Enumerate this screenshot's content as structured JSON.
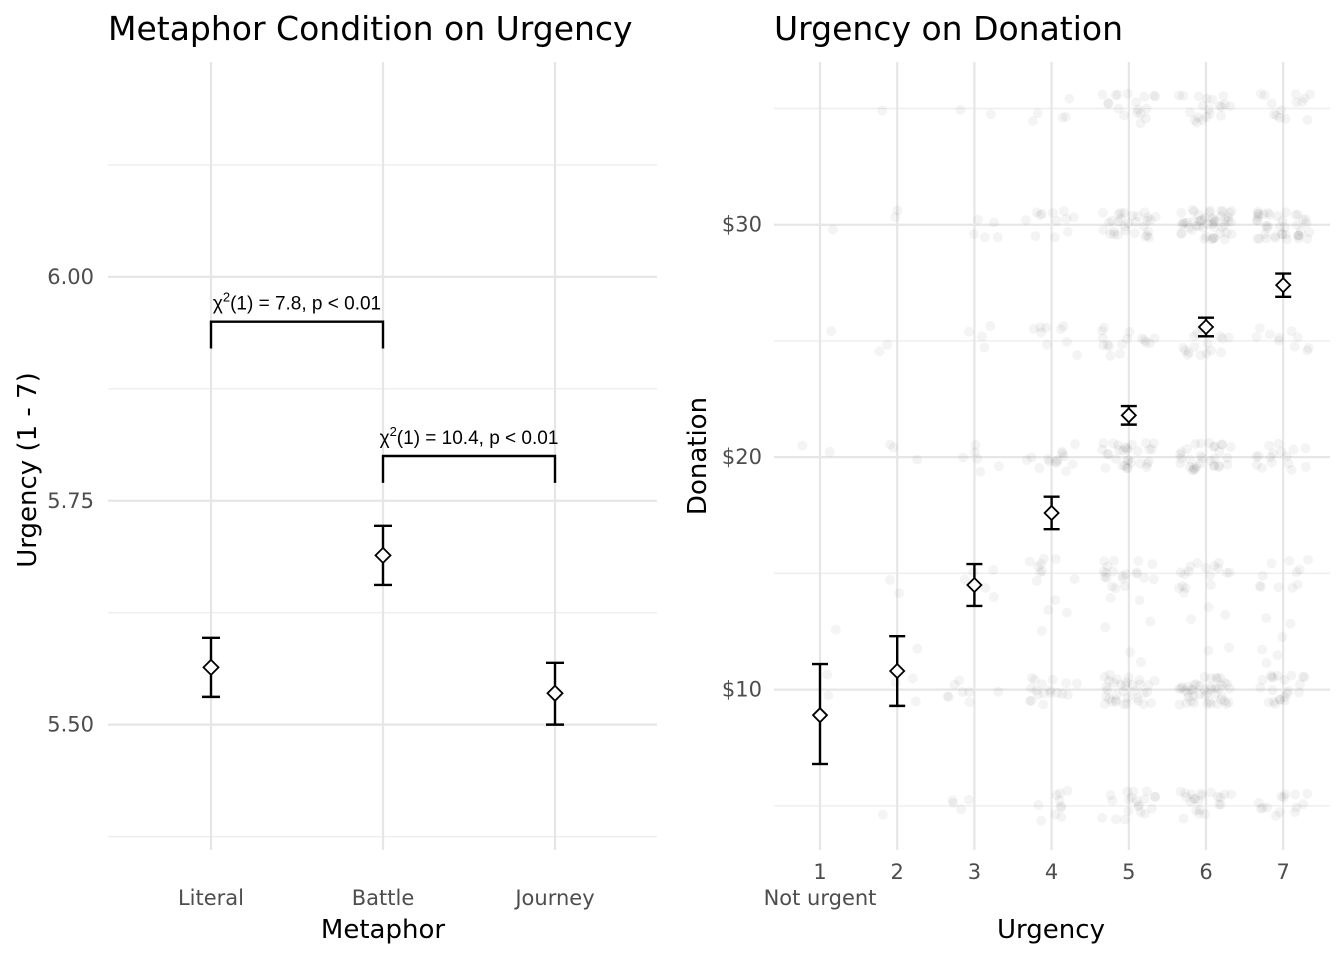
{
  "chart_data": [
    {
      "type": "scatter",
      "title": "Metaphor Condition on Urgency",
      "xlabel": "Metaphor",
      "ylabel": "Urgency (1 - 7)",
      "categories": [
        "Literal",
        "Battle",
        "Journey"
      ],
      "ylim": [
        5.36,
        6.24
      ],
      "yticks": [
        5.5,
        5.75,
        6.0
      ],
      "ytick_labels": [
        "5.50",
        "5.75",
        "6.00"
      ],
      "grid": true,
      "points": [
        {
          "category": "Literal",
          "mean": 5.564,
          "lower": 5.531,
          "upper": 5.597
        },
        {
          "category": "Battle",
          "mean": 5.689,
          "lower": 5.656,
          "upper": 5.722
        },
        {
          "category": "Journey",
          "mean": 5.535,
          "lower": 5.5,
          "upper": 5.569
        }
      ],
      "annotations": [
        {
          "from": "Literal",
          "to": "Battle",
          "y_top": 5.95,
          "y_bottom": 5.92,
          "prefix": "χ",
          "sup": "2",
          "text": "(1) = 7.8,   p < 0.01"
        },
        {
          "from": "Battle",
          "to": "Journey",
          "y_top": 5.8,
          "y_bottom": 5.77,
          "prefix": "χ",
          "sup": "2",
          "text": "(1) = 10.4,   p < 0.01"
        }
      ]
    },
    {
      "type": "scatter",
      "title": "Urgency on Donation",
      "xlabel": "Urgency",
      "ylabel": "Donation",
      "x": [
        1,
        2,
        3,
        4,
        5,
        6,
        7
      ],
      "xtick_labels": [
        "1",
        "2",
        "3",
        "4",
        "5",
        "6",
        "7"
      ],
      "x_extra_label": "Not urgent",
      "xlim": [
        0.3,
        7.6
      ],
      "ylim": [
        3.1,
        37.0
      ],
      "yticks": [
        10,
        20,
        30
      ],
      "ytick_labels": [
        "$10",
        "$20",
        "$30"
      ],
      "grid": true,
      "points": [
        {
          "x": 1,
          "mean": 8.9,
          "lower": 6.8,
          "upper": 11.1
        },
        {
          "x": 2,
          "mean": 10.8,
          "lower": 9.3,
          "upper": 12.3
        },
        {
          "x": 3,
          "mean": 14.5,
          "lower": 13.6,
          "upper": 15.4
        },
        {
          "x": 4,
          "mean": 17.6,
          "lower": 16.9,
          "upper": 18.3
        },
        {
          "x": 5,
          "mean": 21.8,
          "lower": 21.4,
          "upper": 22.2
        },
        {
          "x": 6,
          "mean": 25.6,
          "lower": 25.2,
          "upper": 26.0
        },
        {
          "x": 7,
          "mean": 27.4,
          "lower": 26.9,
          "upper": 27.9
        }
      ],
      "raw_data_note": "",
      "raw_counts": {
        "1": [
          0,
          2,
          0,
          2,
          1,
          1,
          0,
          1
        ],
        "2": [
          1,
          3,
          1,
          3,
          2,
          2,
          1,
          2
        ],
        "3": [
          4,
          7,
          3,
          6,
          4,
          5,
          2,
          3
        ],
        "4": [
          10,
          16,
          8,
          14,
          9,
          12,
          5,
          7
        ],
        "5": [
          20,
          32,
          14,
          30,
          16,
          30,
          18,
          14
        ],
        "6": [
          22,
          36,
          14,
          32,
          16,
          50,
          20,
          16
        ],
        "7": [
          14,
          20,
          9,
          16,
          10,
          40,
          14,
          10
        ]
      },
      "raw_donation_levels": [
        5,
        10,
        15,
        20,
        25,
        30,
        35,
        12.5
      ]
    }
  ]
}
